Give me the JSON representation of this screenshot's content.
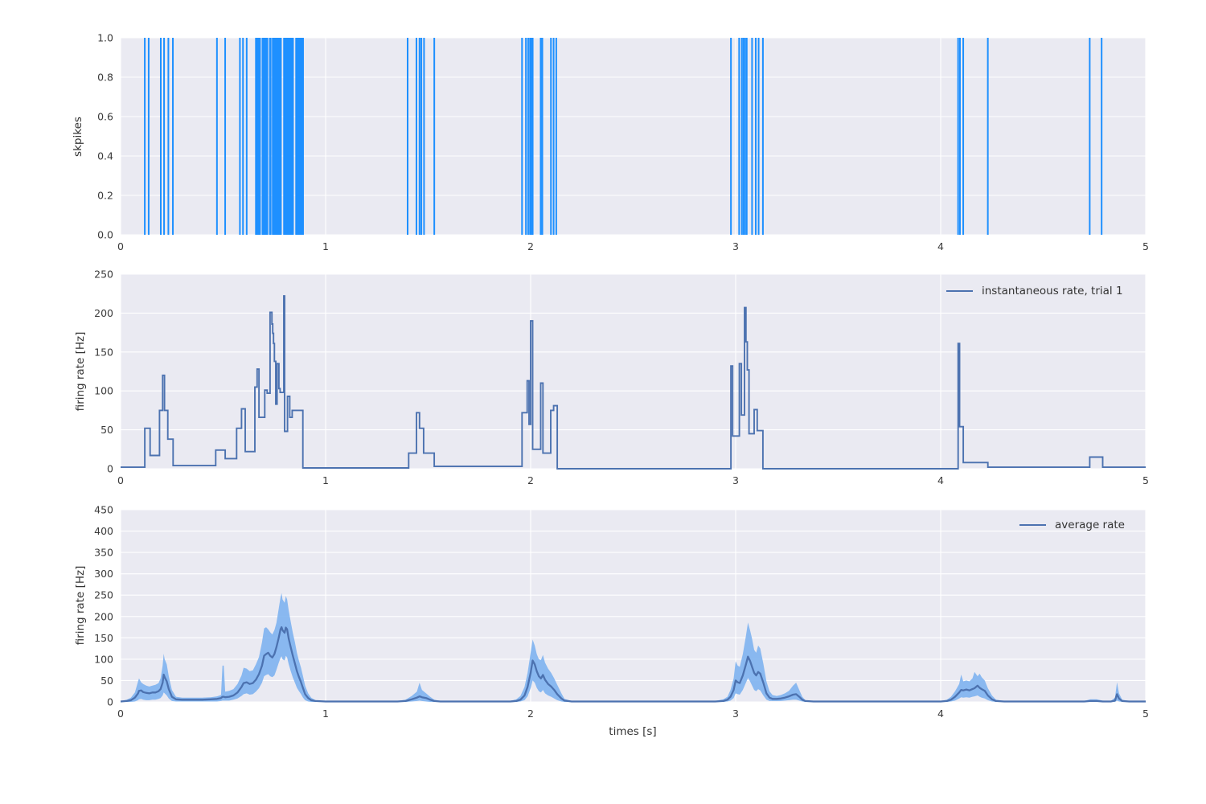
{
  "figure": {
    "background": "#ffffff",
    "axes_background": "#eaeaf2",
    "grid_color": "#ffffff",
    "tick_color": "#3a3a3a",
    "label_color": "#333333"
  },
  "chart_data": [
    {
      "id": "spike-raster",
      "type": "event-raster",
      "ylabel": "skpikes",
      "xlim": [
        0,
        5
      ],
      "ylim": [
        0.0,
        1.0
      ],
      "xticks": [
        0,
        1,
        2,
        3,
        4,
        5
      ],
      "xtick_labels": [
        "0",
        "1",
        "2",
        "3",
        "4",
        "5"
      ],
      "yticks": [
        0,
        0.2,
        0.4,
        0.6,
        0.8,
        1.0
      ],
      "ytick_labels": [
        "0.0",
        "0.2",
        "0.4",
        "0.6",
        "0.8",
        "1.0"
      ],
      "line_color": "#1e90ff",
      "spike_times": [
        0.118,
        0.137,
        0.196,
        0.212,
        0.233,
        0.255,
        0.47,
        0.51,
        0.582,
        0.597,
        0.615,
        0.66,
        0.664,
        0.668,
        0.672,
        0.676,
        0.68,
        0.692,
        0.696,
        0.7,
        0.704,
        0.708,
        0.712,
        0.716,
        0.728,
        0.732,
        0.742,
        0.746,
        0.75,
        0.754,
        0.758,
        0.762,
        0.766,
        0.77,
        0.774,
        0.778,
        0.782,
        0.797,
        0.801,
        0.805,
        0.809,
        0.813,
        0.817,
        0.821,
        0.825,
        0.829,
        0.833,
        0.837,
        0.841,
        0.856,
        0.86,
        0.864,
        0.868,
        0.872,
        0.876,
        0.881,
        0.885,
        0.89,
        1.4,
        1.443,
        1.458,
        1.467,
        1.48,
        1.53,
        1.958,
        1.977,
        1.988,
        1.997,
        2.003,
        2.01,
        2.049,
        2.057,
        2.099,
        2.112,
        2.125,
        2.977,
        3.017,
        3.03,
        3.038,
        3.046,
        3.054,
        3.08,
        3.098,
        3.112,
        3.133,
        4.085,
        4.094,
        4.11,
        4.23,
        4.727,
        4.785
      ]
    },
    {
      "id": "instantaneous-rate",
      "type": "step-line",
      "ylabel": "firing rate [Hz]",
      "legend": "instantaneous rate, trial 1",
      "legend_position": "upper right",
      "xlim": [
        0,
        5
      ],
      "ylim": [
        0,
        250
      ],
      "xticks": [
        0,
        1,
        2,
        3,
        4,
        5
      ],
      "xtick_labels": [
        "0",
        "1",
        "2",
        "3",
        "4",
        "5"
      ],
      "yticks": [
        0,
        50,
        100,
        150,
        200,
        250
      ],
      "ytick_labels": [
        "0",
        "50",
        "100",
        "150",
        "200",
        "250"
      ],
      "line_color": "#4c72b0",
      "steps": [
        [
          0.0,
          2
        ],
        [
          0.118,
          52
        ],
        [
          0.144,
          17
        ],
        [
          0.19,
          75
        ],
        [
          0.205,
          120
        ],
        [
          0.214,
          75
        ],
        [
          0.23,
          38
        ],
        [
          0.256,
          4
        ],
        [
          0.464,
          24
        ],
        [
          0.51,
          13
        ],
        [
          0.566,
          52
        ],
        [
          0.59,
          77
        ],
        [
          0.608,
          22
        ],
        [
          0.655,
          105
        ],
        [
          0.666,
          128
        ],
        [
          0.675,
          66
        ],
        [
          0.703,
          101
        ],
        [
          0.715,
          97
        ],
        [
          0.729,
          201
        ],
        [
          0.738,
          186
        ],
        [
          0.742,
          174
        ],
        [
          0.746,
          161
        ],
        [
          0.75,
          138
        ],
        [
          0.757,
          83
        ],
        [
          0.763,
          135
        ],
        [
          0.772,
          103
        ],
        [
          0.778,
          98
        ],
        [
          0.796,
          222
        ],
        [
          0.8,
          48
        ],
        [
          0.814,
          93
        ],
        [
          0.825,
          66
        ],
        [
          0.837,
          75
        ],
        [
          0.889,
          1
        ],
        [
          1.405,
          20
        ],
        [
          1.443,
          72
        ],
        [
          1.458,
          52
        ],
        [
          1.478,
          20
        ],
        [
          1.53,
          3
        ],
        [
          1.958,
          72
        ],
        [
          1.983,
          113
        ],
        [
          1.992,
          57
        ],
        [
          2.0,
          190
        ],
        [
          2.01,
          25
        ],
        [
          2.049,
          110
        ],
        [
          2.06,
          20
        ],
        [
          2.098,
          75
        ],
        [
          2.112,
          81
        ],
        [
          2.13,
          0
        ],
        [
          2.977,
          132
        ],
        [
          2.985,
          42
        ],
        [
          3.018,
          135
        ],
        [
          3.028,
          69
        ],
        [
          3.043,
          207
        ],
        [
          3.05,
          163
        ],
        [
          3.057,
          127
        ],
        [
          3.065,
          45
        ],
        [
          3.09,
          76
        ],
        [
          3.105,
          49
        ],
        [
          3.133,
          0
        ],
        [
          4.085,
          161
        ],
        [
          4.092,
          54
        ],
        [
          4.11,
          8
        ],
        [
          4.23,
          2
        ],
        [
          4.727,
          15
        ],
        [
          4.79,
          2
        ]
      ]
    },
    {
      "id": "average-rate",
      "type": "line-band",
      "ylabel": "firing rate [Hz]",
      "xlabel": "times [s]",
      "legend": "average rate",
      "legend_position": "upper right",
      "xlim": [
        0,
        5
      ],
      "ylim": [
        0,
        450
      ],
      "xticks": [
        0,
        1,
        2,
        3,
        4,
        5
      ],
      "xtick_labels": [
        "0",
        "1",
        "2",
        "3",
        "4",
        "5"
      ],
      "yticks": [
        0,
        50,
        100,
        150,
        200,
        250,
        300,
        350,
        400,
        450
      ],
      "ytick_labels": [
        "0",
        "50",
        "100",
        "150",
        "200",
        "250",
        "300",
        "350",
        "400",
        "450"
      ],
      "line_color": "#4c72b0",
      "band_color": "#7eb2ef",
      "points": [
        [
          0.0,
          1,
          0,
          2
        ],
        [
          0.03,
          2,
          0,
          5
        ],
        [
          0.05,
          4,
          0,
          10
        ],
        [
          0.07,
          10,
          1,
          22
        ],
        [
          0.085,
          20,
          4,
          48
        ],
        [
          0.09,
          26,
          6,
          55
        ],
        [
          0.1,
          27,
          7,
          46
        ],
        [
          0.11,
          23,
          5,
          42
        ],
        [
          0.125,
          21,
          4,
          38
        ],
        [
          0.14,
          20,
          4,
          36
        ],
        [
          0.155,
          22,
          5,
          38
        ],
        [
          0.17,
          22,
          5,
          40
        ],
        [
          0.185,
          25,
          7,
          44
        ],
        [
          0.195,
          30,
          9,
          55
        ],
        [
          0.205,
          45,
          15,
          85
        ],
        [
          0.21,
          64,
          22,
          113
        ],
        [
          0.215,
          58,
          20,
          100
        ],
        [
          0.225,
          48,
          15,
          88
        ],
        [
          0.235,
          30,
          8,
          60
        ],
        [
          0.25,
          12,
          2,
          28
        ],
        [
          0.27,
          6,
          1,
          12
        ],
        [
          0.3,
          5,
          1,
          10
        ],
        [
          0.35,
          5,
          1,
          10
        ],
        [
          0.4,
          5,
          1,
          10
        ],
        [
          0.44,
          6,
          1,
          11
        ],
        [
          0.47,
          7,
          1,
          13
        ],
        [
          0.49,
          9,
          2,
          16
        ],
        [
          0.497,
          12,
          3,
          85
        ],
        [
          0.503,
          12,
          3,
          85
        ],
        [
          0.51,
          11,
          3,
          24
        ],
        [
          0.53,
          12,
          3,
          26
        ],
        [
          0.55,
          15,
          5,
          30
        ],
        [
          0.57,
          22,
          8,
          42
        ],
        [
          0.59,
          35,
          14,
          62
        ],
        [
          0.6,
          44,
          18,
          80
        ],
        [
          0.615,
          46,
          20,
          78
        ],
        [
          0.63,
          42,
          17,
          72
        ],
        [
          0.645,
          44,
          18,
          74
        ],
        [
          0.66,
          52,
          24,
          88
        ],
        [
          0.675,
          65,
          32,
          105
        ],
        [
          0.69,
          85,
          45,
          140
        ],
        [
          0.7,
          108,
          60,
          172
        ],
        [
          0.71,
          112,
          63,
          175
        ],
        [
          0.72,
          115,
          65,
          170
        ],
        [
          0.73,
          108,
          60,
          163
        ],
        [
          0.74,
          104,
          58,
          158
        ],
        [
          0.75,
          112,
          62,
          168
        ],
        [
          0.76,
          128,
          75,
          185
        ],
        [
          0.77,
          148,
          90,
          215
        ],
        [
          0.78,
          170,
          103,
          245
        ],
        [
          0.785,
          175,
          107,
          255
        ],
        [
          0.79,
          168,
          100,
          240
        ],
        [
          0.8,
          162,
          97,
          232
        ],
        [
          0.806,
          174,
          108,
          248
        ],
        [
          0.812,
          170,
          104,
          240
        ],
        [
          0.82,
          148,
          88,
          214
        ],
        [
          0.83,
          128,
          72,
          188
        ],
        [
          0.84,
          108,
          57,
          162
        ],
        [
          0.85,
          90,
          45,
          140
        ],
        [
          0.86,
          72,
          33,
          115
        ],
        [
          0.87,
          58,
          25,
          96
        ],
        [
          0.88,
          46,
          18,
          80
        ],
        [
          0.89,
          32,
          10,
          60
        ],
        [
          0.9,
          18,
          4,
          38
        ],
        [
          0.915,
          9,
          1,
          20
        ],
        [
          0.93,
          4,
          0,
          10
        ],
        [
          0.95,
          2,
          0,
          4
        ],
        [
          1.0,
          1,
          0,
          2
        ],
        [
          1.35,
          1,
          0,
          2
        ],
        [
          1.39,
          2,
          0,
          5
        ],
        [
          1.42,
          6,
          1,
          14
        ],
        [
          1.445,
          10,
          2,
          24
        ],
        [
          1.458,
          13,
          3,
          45
        ],
        [
          1.47,
          11,
          2,
          28
        ],
        [
          1.49,
          9,
          1,
          20
        ],
        [
          1.51,
          5,
          0,
          12
        ],
        [
          1.53,
          2,
          0,
          5
        ],
        [
          1.56,
          1,
          0,
          2
        ],
        [
          1.9,
          1,
          0,
          2
        ],
        [
          1.93,
          2,
          0,
          6
        ],
        [
          1.95,
          5,
          1,
          14
        ],
        [
          1.97,
          15,
          4,
          35
        ],
        [
          1.985,
          35,
          13,
          68
        ],
        [
          2.0,
          68,
          32,
          115
        ],
        [
          2.01,
          97,
          50,
          146
        ],
        [
          2.02,
          88,
          45,
          132
        ],
        [
          2.03,
          72,
          33,
          112
        ],
        [
          2.04,
          60,
          25,
          100
        ],
        [
          2.05,
          55,
          22,
          98
        ],
        [
          2.06,
          63,
          28,
          110
        ],
        [
          2.07,
          52,
          20,
          92
        ],
        [
          2.085,
          42,
          15,
          78
        ],
        [
          2.1,
          36,
          12,
          68
        ],
        [
          2.115,
          28,
          8,
          55
        ],
        [
          2.13,
          18,
          4,
          40
        ],
        [
          2.15,
          8,
          1,
          20
        ],
        [
          2.165,
          3,
          0,
          7
        ],
        [
          2.2,
          1,
          0,
          2
        ],
        [
          2.9,
          1,
          0,
          2
        ],
        [
          2.94,
          2,
          0,
          6
        ],
        [
          2.96,
          5,
          1,
          12
        ],
        [
          2.975,
          12,
          3,
          28
        ],
        [
          2.99,
          28,
          9,
          55
        ],
        [
          3.0,
          50,
          20,
          95
        ],
        [
          3.01,
          46,
          18,
          85
        ],
        [
          3.02,
          44,
          17,
          82
        ],
        [
          3.035,
          62,
          28,
          112
        ],
        [
          3.05,
          88,
          45,
          155
        ],
        [
          3.06,
          106,
          56,
          186
        ],
        [
          3.07,
          96,
          48,
          168
        ],
        [
          3.08,
          82,
          38,
          148
        ],
        [
          3.09,
          68,
          28,
          122
        ],
        [
          3.1,
          62,
          25,
          115
        ],
        [
          3.11,
          70,
          30,
          132
        ],
        [
          3.12,
          66,
          27,
          125
        ],
        [
          3.135,
          45,
          15,
          90
        ],
        [
          3.15,
          20,
          5,
          48
        ],
        [
          3.165,
          10,
          2,
          25
        ],
        [
          3.18,
          7,
          2,
          16
        ],
        [
          3.2,
          7,
          2,
          14
        ],
        [
          3.22,
          8,
          2,
          16
        ],
        [
          3.24,
          10,
          3,
          20
        ],
        [
          3.26,
          13,
          4,
          26
        ],
        [
          3.28,
          17,
          5,
          38
        ],
        [
          3.295,
          18,
          5,
          45
        ],
        [
          3.31,
          12,
          3,
          28
        ],
        [
          3.325,
          5,
          1,
          12
        ],
        [
          3.34,
          2,
          0,
          4
        ],
        [
          3.38,
          1,
          0,
          2
        ],
        [
          4.0,
          1,
          0,
          2
        ],
        [
          4.03,
          2,
          0,
          5
        ],
        [
          4.05,
          5,
          1,
          12
        ],
        [
          4.07,
          12,
          3,
          25
        ],
        [
          4.09,
          22,
          8,
          42
        ],
        [
          4.1,
          28,
          11,
          64
        ],
        [
          4.11,
          27,
          10,
          48
        ],
        [
          4.125,
          29,
          11,
          50
        ],
        [
          4.14,
          27,
          10,
          48
        ],
        [
          4.155,
          30,
          12,
          55
        ],
        [
          4.165,
          32,
          13,
          70
        ],
        [
          4.18,
          38,
          15,
          60
        ],
        [
          4.19,
          33,
          12,
          66
        ],
        [
          4.2,
          30,
          10,
          58
        ],
        [
          4.215,
          26,
          8,
          50
        ],
        [
          4.23,
          15,
          4,
          32
        ],
        [
          4.25,
          6,
          1,
          15
        ],
        [
          4.27,
          2,
          0,
          5
        ],
        [
          4.31,
          1,
          0,
          2
        ],
        [
          4.7,
          1,
          0,
          2
        ],
        [
          4.73,
          2,
          0,
          6
        ],
        [
          4.76,
          2,
          0,
          6
        ],
        [
          4.79,
          1,
          0,
          3
        ],
        [
          4.83,
          1,
          0,
          2
        ],
        [
          4.85,
          3,
          0,
          10
        ],
        [
          4.86,
          18,
          3,
          46
        ],
        [
          4.87,
          8,
          1,
          20
        ],
        [
          4.885,
          2,
          0,
          5
        ],
        [
          4.92,
          1,
          0,
          2
        ],
        [
          5.0,
          1,
          0,
          2
        ]
      ]
    }
  ]
}
